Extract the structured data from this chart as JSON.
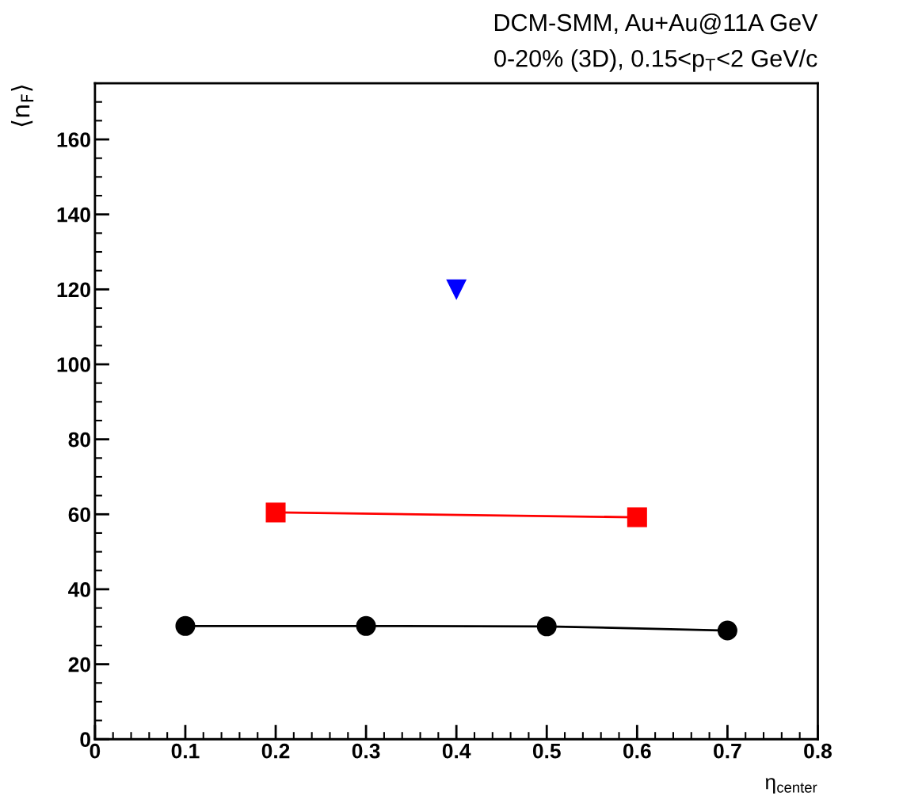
{
  "chart_data": {
    "type": "line",
    "title": "DCM-SMM, Au+Au@11A GeV",
    "subtitle": "0-20% (3D), 0.15<p$_{T}$<2 GeV/c",
    "xlabel": "η$_{center}$",
    "ylabel": "⟨n$_{F}$⟩",
    "xlim": [
      0,
      0.8
    ],
    "xticks": [
      0,
      0.1,
      0.2,
      0.3,
      0.4,
      0.5,
      0.6,
      0.7,
      0.8
    ],
    "ylim": [
      0,
      175
    ],
    "yticks": [
      0,
      20,
      40,
      60,
      80,
      100,
      120,
      140,
      160
    ],
    "grid": false,
    "line_style": "solid",
    "series": [
      {
        "color": "#000000",
        "marker": "circle",
        "x": [
          0.1,
          0.3,
          0.5,
          0.7
        ],
        "values": [
          30.2,
          30.2,
          30.1,
          29.0
        ]
      },
      {
        "color": "#ff0000",
        "marker": "square",
        "x": [
          0.2,
          0.6
        ],
        "values": [
          60.5,
          59.2
        ]
      },
      {
        "color": "#0000ff",
        "marker": "triangle",
        "x": [
          0.4
        ],
        "values": [
          120
        ]
      }
    ]
  }
}
